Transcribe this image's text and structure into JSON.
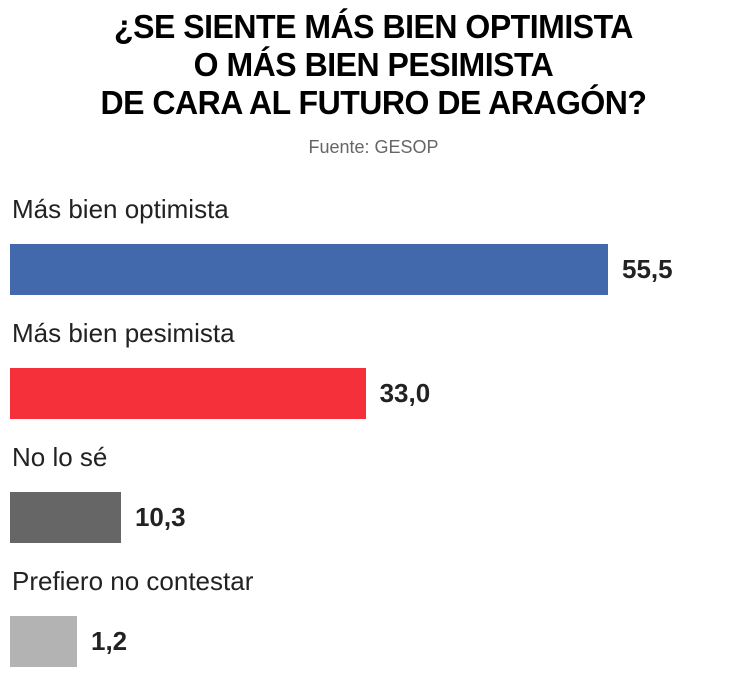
{
  "chart_data": {
    "type": "bar",
    "orientation": "horizontal",
    "title_lines": [
      "¿SE SIENTE MÁS BIEN OPTIMISTA",
      "O MÁS BIEN PESIMISTA",
      "DE CARA AL FUTURO DE ARAGÓN?"
    ],
    "subtitle": "Fuente: GESOP",
    "categories": [
      "Más bien optimista",
      "Más bien pesimista",
      "No lo sé",
      "Prefiero no contestar"
    ],
    "values": [
      55.5,
      33.0,
      10.3,
      1.2
    ],
    "value_labels": [
      "55,5",
      "33,0",
      "10,3",
      "1,2"
    ],
    "colors": [
      "#4169AC",
      "#F5303A",
      "#666666",
      "#B3B3B3"
    ],
    "xlabel": "",
    "ylabel": "",
    "grid": false,
    "legend": "none"
  }
}
